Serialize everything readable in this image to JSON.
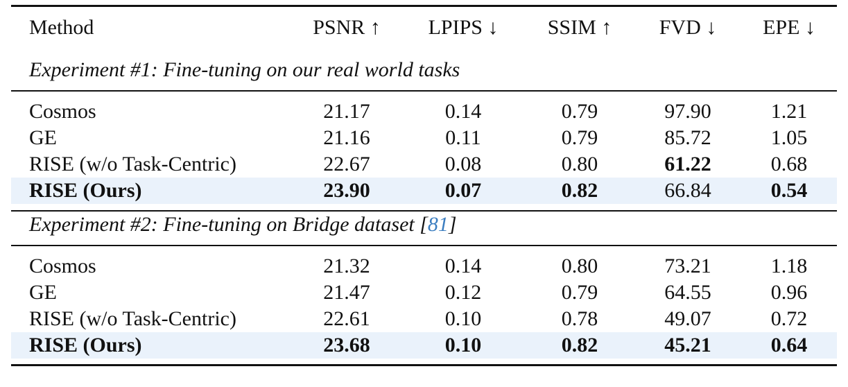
{
  "table": {
    "header": [
      "Method",
      "PSNR ↑",
      "LPIPS ↓",
      "SSIM ↑",
      "FVD ↓",
      "EPE ↓"
    ],
    "sections": [
      {
        "title": "Experiment #1: Fine-tuning on our real world tasks",
        "rows": [
          {
            "cells": [
              "Cosmos",
              "21.17",
              "0.14",
              "0.79",
              "97.90",
              "1.21"
            ],
            "bold": [],
            "highlight": false
          },
          {
            "cells": [
              "GE",
              "21.16",
              "0.11",
              "0.79",
              "85.72",
              "1.05"
            ],
            "bold": [],
            "highlight": false
          },
          {
            "cells": [
              "RISE (w/o Task-Centric)",
              "22.67",
              "0.08",
              "0.80",
              "61.22",
              "0.68"
            ],
            "bold": [
              4
            ],
            "highlight": false
          },
          {
            "cells": [
              "RISE (Ours)",
              "23.90",
              "0.07",
              "0.82",
              "66.84",
              "0.54"
            ],
            "bold": [
              0,
              1,
              2,
              3,
              5
            ],
            "highlight": true
          }
        ]
      },
      {
        "title": "Experiment #2: Fine-tuning on Bridge dataset [",
        "citation": "81",
        "title_end": "]",
        "rows": [
          {
            "cells": [
              "Cosmos",
              "21.32",
              "0.14",
              "0.80",
              "73.21",
              "1.18"
            ],
            "bold": [],
            "highlight": false
          },
          {
            "cells": [
              "GE",
              "21.47",
              "0.12",
              "0.79",
              "64.55",
              "0.96"
            ],
            "bold": [],
            "highlight": false
          },
          {
            "cells": [
              "RISE (w/o Task-Centric)",
              "22.61",
              "0.10",
              "0.78",
              "49.07",
              "0.72"
            ],
            "bold": [],
            "highlight": false
          },
          {
            "cells": [
              "RISE (Ours)",
              "23.68",
              "0.10",
              "0.82",
              "45.21",
              "0.64"
            ],
            "bold": [
              0,
              1,
              2,
              3,
              4,
              5
            ],
            "highlight": true
          }
        ]
      }
    ]
  }
}
